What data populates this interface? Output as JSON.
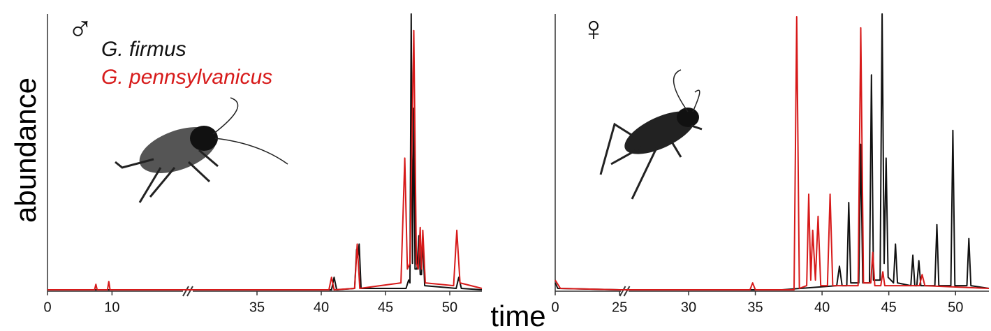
{
  "xlabel": "time",
  "ylabel": "abundance",
  "chart_data": [
    {
      "type": "line",
      "symbol": "♂",
      "legend": "upper left",
      "xsegments": [
        [
          0,
          21
        ],
        [
          30,
          52.5
        ]
      ],
      "xticks": [
        0,
        10,
        35,
        40,
        45,
        50
      ],
      "ylim": [
        0,
        100
      ],
      "series": [
        {
          "name": "G. firmus",
          "color": "#111111",
          "x": [
            0,
            20,
            30,
            40.8,
            41.0,
            41.2,
            42.6,
            42.75,
            42.85,
            42.95,
            43.1,
            46.6,
            46.8,
            46.9,
            47.0,
            47.1,
            47.2,
            47.3,
            47.45,
            47.6,
            47.7,
            47.8,
            47.9,
            48.05,
            50.5,
            50.7,
            50.9,
            52.5
          ],
          "values": [
            0.5,
            0.5,
            0.5,
            0.5,
            5,
            0.5,
            1,
            15,
            12,
            17,
            1,
            1,
            4,
            3,
            100,
            10,
            66,
            8,
            8,
            20,
            6,
            6,
            19,
            2,
            1,
            5,
            1,
            0.5
          ]
        },
        {
          "name": "G. pennsylvanicus",
          "color": "#d71a1a",
          "x": [
            0,
            7.3,
            7.5,
            7.7,
            9.3,
            9.5,
            9.7,
            20,
            30,
            40.6,
            40.8,
            41.0,
            42.6,
            42.8,
            43.0,
            46.2,
            46.5,
            46.7,
            46.9,
            47.2,
            47.4,
            47.55,
            47.7,
            47.8,
            47.9,
            48.1,
            50.3,
            50.55,
            50.8,
            52.5
          ],
          "values": [
            0.5,
            0.5,
            2.5,
            0.5,
            0.5,
            3.5,
            0.5,
            0.5,
            0.5,
            0.5,
            5,
            0.5,
            1,
            17,
            1,
            3,
            48,
            8,
            10,
            94,
            10,
            8,
            23,
            8,
            22,
            3,
            2,
            22,
            3,
            1
          ]
        }
      ]
    },
    {
      "type": "line",
      "symbol": "♀",
      "xsegments": [
        [
          0,
          25.5
        ],
        [
          25.5,
          52.5
        ]
      ],
      "xticks": [
        0,
        25,
        30,
        35,
        40,
        45,
        50
      ],
      "ylim": [
        0,
        100
      ],
      "series": [
        {
          "color": "#111111",
          "x": [
            0,
            1,
            25,
            25.5,
            37,
            41.1,
            41.3,
            41.5,
            41.85,
            42.0,
            42.15,
            42.75,
            42.9,
            43.05,
            43.55,
            43.7,
            43.85,
            44.35,
            44.5,
            44.65,
            44.8,
            44.95,
            45.35,
            45.5,
            45.65,
            46.65,
            46.8,
            46.95,
            47.1,
            47.25,
            47.4,
            48.45,
            48.6,
            48.75,
            49.65,
            49.8,
            49.95,
            50.85,
            51.0,
            51.15,
            52.5
          ],
          "values": [
            3,
            1,
            0.5,
            0.5,
            0.5,
            2,
            9,
            2,
            2,
            32,
            3,
            3,
            53,
            3,
            3,
            78,
            4,
            4,
            100,
            10,
            48,
            5,
            3,
            17,
            3,
            2,
            13,
            2,
            2,
            11,
            2,
            2,
            24,
            2,
            2,
            58,
            2,
            2,
            19,
            2,
            1
          ]
        },
        {
          "color": "#d71a1a",
          "x": [
            0,
            2,
            25,
            25.5,
            34.6,
            34.8,
            35.0,
            37.9,
            38.1,
            38.3,
            38.85,
            39.0,
            39.15,
            39.3,
            39.5,
            39.7,
            39.9,
            40.4,
            40.6,
            40.8,
            42.7,
            42.9,
            43.1,
            43.65,
            43.8,
            43.95,
            44.4,
            44.55,
            44.7,
            47.3,
            47.5,
            47.7,
            52.5
          ],
          "values": [
            4,
            1,
            0.5,
            0.5,
            0.5,
            3,
            0.5,
            0.5,
            99,
            1,
            2,
            35,
            4,
            22,
            4,
            27,
            2,
            2,
            35,
            2,
            2,
            95,
            3,
            3,
            14,
            2,
            2,
            7,
            2,
            2,
            6,
            2,
            1
          ]
        }
      ]
    }
  ]
}
